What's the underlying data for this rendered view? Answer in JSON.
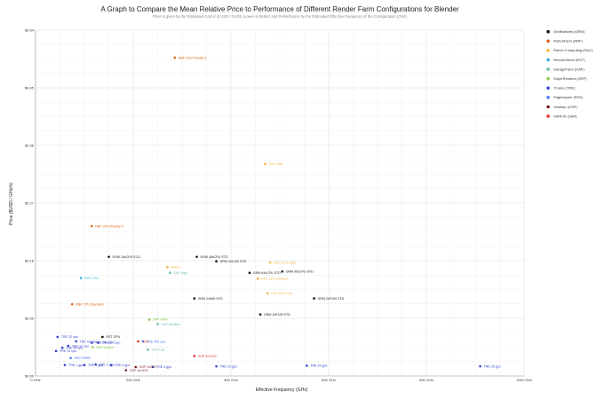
{
  "chart_data": {
    "type": "scatter",
    "title": "A Graph to Compare the Mean Relative Price to Performance of Different Render Farm Configurations for Blender",
    "subtitle": "Price is given by the Estimated Cost in $ USD / GHz/h (Lower is Better) and Performance by the Estimated Effective Frequency of the Configuration (GHz)",
    "xlabel": "Effective Frequency (GHz)",
    "ylabel": "Price ($USD / GHz/h)",
    "xlim": [
      0,
      1000
    ],
    "ylim": [
      0,
      0.54
    ],
    "x_ticks": [
      0,
      200,
      400,
      600,
      800,
      1000
    ],
    "x_tick_labels": [
      "0 GHz",
      "200 GHz",
      "400 GHz",
      "600 GHz",
      "800 GHz",
      "1000 GHz"
    ],
    "y_ticks": [
      0,
      0.09,
      0.18,
      0.27,
      0.36,
      0.45,
      0.54
    ],
    "y_tick_labels": [
      "$0.00",
      "$0.09",
      "$0.18",
      "$0.27",
      "$0.36",
      "$0.45",
      "$0.54"
    ],
    "grid": true,
    "legend_position": "right",
    "series": [
      {
        "name": "GridMarkets (GRM)",
        "color": "#111111",
        "points": [
          {
            "label": "GRM 16xCPU ECO",
            "x": 150,
            "y": 0.186
          },
          {
            "label": "GRM 48xCPU STD",
            "x": 330,
            "y": 0.186
          },
          {
            "label": "GRM 4xV100 STD",
            "x": 370,
            "y": 0.179
          },
          {
            "label": "GRM 64xCPU STD",
            "x": 438,
            "y": 0.161
          },
          {
            "label": "GRM 96xCPU STD",
            "x": 505,
            "y": 0.163
          },
          {
            "label": "GRM 2xK80 STD",
            "x": 325,
            "y": 0.121
          },
          {
            "label": "GRM 2xP100 STD",
            "x": 570,
            "y": 0.121
          },
          {
            "label": "GRM 1xP100 STD",
            "x": 460,
            "y": 0.096
          },
          {
            "label": "RST GPU",
            "x": 137,
            "y": 0.061
          }
        ]
      },
      {
        "name": "RebusFarm (RBF)",
        "color": "#e06010",
        "points": [
          {
            "label": "RBF CPU Priority+1",
            "x": 285,
            "y": 0.497
          },
          {
            "label": "RBF CPU Priority+2",
            "x": 115,
            "y": 0.234
          },
          {
            "label": "RBF CPU Standard",
            "x": 75,
            "y": 0.112
          }
        ]
      },
      {
        "name": "Ranch Computing (RAC)",
        "color": "#f5b642",
        "points": [
          {
            "label": "RAC Elite",
            "x": 470,
            "y": 0.331
          },
          {
            "label": "RAC CPU-High",
            "x": 480,
            "y": 0.177
          },
          {
            "label": "RAC CPU-Medium",
            "x": 455,
            "y": 0.152
          },
          {
            "label": "RAC CPU-Low",
            "x": 475,
            "y": 0.129
          },
          {
            "label": "#REF!",
            "x": 270,
            "y": 0.17
          }
        ]
      },
      {
        "name": "RenderStreet (RST)",
        "color": "#33aadd",
        "points": [
          {
            "label": "RST CPU",
            "x": 93,
            "y": 0.153
          }
        ]
      },
      {
        "name": "GarageFarm (GAF)",
        "color": "#66bbaa",
        "points": [
          {
            "label": "GAF High",
            "x": 275,
            "y": 0.161
          },
          {
            "label": "GAF Medium",
            "x": 250,
            "y": 0.081
          },
          {
            "label": "GAF Low",
            "x": 230,
            "y": 0.041
          }
        ]
      },
      {
        "name": "SuperRenders (SRF)",
        "color": "#88cc44",
        "points": [
          {
            "label": "SRF Silver",
            "x": 233,
            "y": 0.088
          },
          {
            "label": "SRF Bronze",
            "x": 117,
            "y": 0.045
          }
        ]
      },
      {
        "name": "Tmanu (TRE)",
        "color": "#3344cc",
        "points": [
          {
            "label": "TRE 32 cpu",
            "x": 45,
            "y": 0.061
          },
          {
            "label": "TRE 16 cpu",
            "x": 83,
            "y": 0.054
          },
          {
            "label": "TRE 24 cpu",
            "x": 115,
            "y": 0.052
          },
          {
            "label": "TRE 250 cpu",
            "x": 128,
            "y": 0.052
          },
          {
            "label": "TRE 12 cpu",
            "x": 67,
            "y": 0.047
          },
          {
            "label": "TRE 40 cpu",
            "x": 55,
            "y": 0.044
          },
          {
            "label": "TRE 14 cpu",
            "x": 42,
            "y": 0.039
          },
          {
            "label": "TRE 4 gpu",
            "x": 100,
            "y": 0.017
          },
          {
            "label": "TRE 2 gpu",
            "x": 123,
            "y": 0.018
          },
          {
            "label": "TRE 6 gpu",
            "x": 155,
            "y": 0.017
          },
          {
            "label": "TRE 1 gpu",
            "x": 60,
            "y": 0.017
          },
          {
            "label": "TRE 4 gpu",
            "x": 240,
            "y": 0.014
          },
          {
            "label": "TRE 10 gpu",
            "x": 370,
            "y": 0.015
          },
          {
            "label": "TRE 15 gpu",
            "x": 555,
            "y": 0.016
          },
          {
            "label": "TRE 25 gpu",
            "x": 910,
            "y": 0.015
          }
        ]
      },
      {
        "name": "Pagerspace (PAS)",
        "color": "#4477ff",
        "points": [
          {
            "label": "PAS P5000",
            "x": 72,
            "y": 0.028
          },
          {
            "label": "TRE 400 cpu",
            "x": 220,
            "y": 0.054
          }
        ]
      },
      {
        "name": "Xesktop (XOP)",
        "color": "#7a1a1a",
        "points": [
          {
            "label": "XOP 1xGTX",
            "x": 205,
            "y": 0.014
          },
          {
            "label": "XOP 1xV100",
            "x": 185,
            "y": 0.009
          }
        ]
      },
      {
        "name": "SARFIS (SAR)",
        "color": "#dd3333",
        "points": [
          {
            "label": "XOP 4xV100",
            "x": 325,
            "y": 0.031
          },
          {
            "label": "XOP",
            "x": 210,
            "y": 0.054
          }
        ]
      }
    ]
  }
}
